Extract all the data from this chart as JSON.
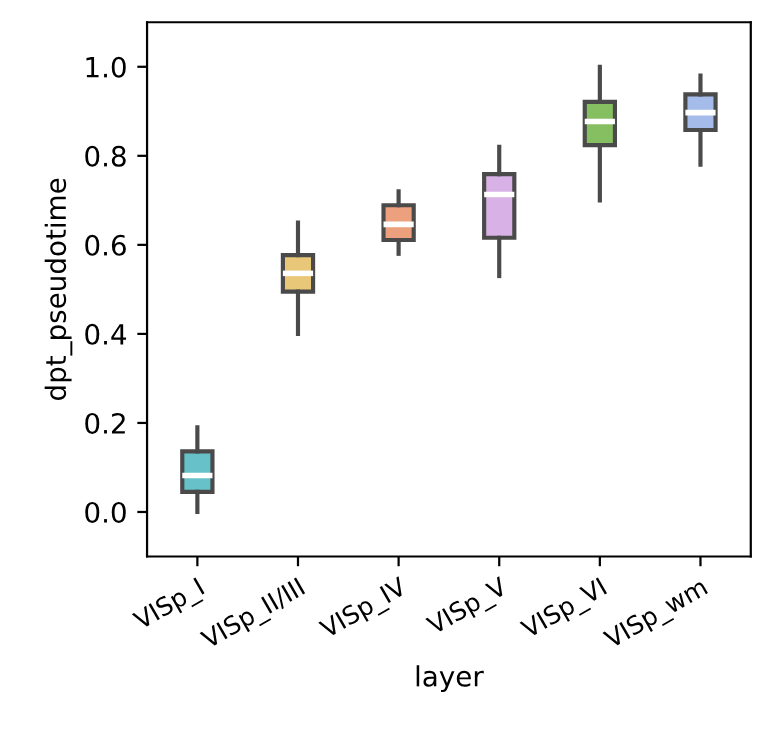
{
  "chart_data": {
    "type": "box",
    "xlabel": "layer",
    "ylabel": "dpt_pseudotime",
    "categories": [
      "VISp_I",
      "VISp_II/III",
      "VISp_IV",
      "VISp_V",
      "VISp_VI",
      "VISp_wm"
    ],
    "colors": [
      "#66c2c8",
      "#e8c878",
      "#eda07e",
      "#d8b2e6",
      "#86be62",
      "#a5bcea"
    ],
    "boxes": [
      {
        "low": 0.0,
        "q1": 0.045,
        "median": 0.082,
        "q3": 0.136,
        "high": 0.19
      },
      {
        "low": 0.4,
        "q1": 0.495,
        "median": 0.536,
        "q3": 0.577,
        "high": 0.65
      },
      {
        "low": 0.58,
        "q1": 0.611,
        "median": 0.646,
        "q3": 0.689,
        "high": 0.72
      },
      {
        "low": 0.53,
        "q1": 0.616,
        "median": 0.713,
        "q3": 0.759,
        "high": 0.82
      },
      {
        "low": 0.7,
        "q1": 0.824,
        "median": 0.877,
        "q3": 0.921,
        "high": 1.0
      },
      {
        "low": 0.78,
        "q1": 0.858,
        "median": 0.897,
        "q3": 0.938,
        "high": 0.98
      }
    ],
    "ylim": [
      -0.1,
      1.1
    ],
    "yticks": [
      {
        "value": 0,
        "label": "0.0"
      },
      {
        "value": 0.2,
        "label": "0.2"
      },
      {
        "value": 0.4,
        "label": "0.4"
      },
      {
        "value": 0.6,
        "label": "0.6"
      },
      {
        "value": 0.8,
        "label": "0.8"
      },
      {
        "value": 1,
        "label": "1.0"
      }
    ],
    "grid": false,
    "legend": false
  }
}
